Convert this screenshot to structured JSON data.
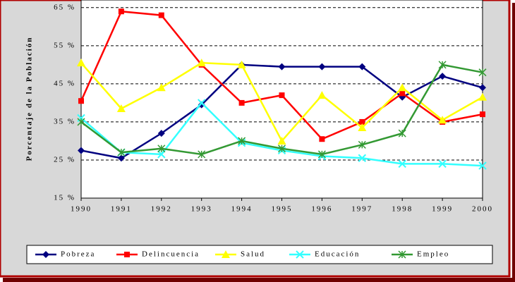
{
  "chart_data": {
    "type": "line",
    "y_label": "Porcentaje de la Población",
    "categories": [
      "1990",
      "1991",
      "1992",
      "1993",
      "1994",
      "1995",
      "1996",
      "1997",
      "1998",
      "1999",
      "2000"
    ],
    "ylim": [
      15,
      67
    ],
    "yticks": [
      {
        "value": 15,
        "label": "15 %"
      },
      {
        "value": 25,
        "label": "25 %"
      },
      {
        "value": 35,
        "label": "35 %"
      },
      {
        "value": 45,
        "label": "45 %"
      },
      {
        "value": 55,
        "label": "55 %"
      },
      {
        "value": 65,
        "label": "65 %"
      }
    ],
    "grid": true,
    "series": [
      {
        "name": "Pobreza",
        "color": "#000080",
        "marker": "diamond",
        "values": [
          27.5,
          25.5,
          32,
          39.5,
          50,
          49.5,
          49.5,
          49.5,
          41.5,
          47,
          44
        ]
      },
      {
        "name": "Delincuencia",
        "color": "#ff0000",
        "marker": "square",
        "values": [
          40.5,
          64,
          63,
          50,
          40,
          42,
          30.5,
          35,
          42.5,
          35,
          37
        ]
      },
      {
        "name": "Salud",
        "color": "#ffff00",
        "marker": "triangle",
        "values": [
          50.5,
          38.5,
          44,
          50.5,
          50,
          30,
          42,
          33.5,
          44,
          35.5,
          41.5
        ]
      },
      {
        "name": "Educación",
        "color": "#33ffff",
        "marker": "x",
        "values": [
          36,
          27,
          26.5,
          40,
          29.5,
          27.5,
          26,
          25.5,
          24,
          24,
          23.5
        ]
      },
      {
        "name": "Empleo",
        "color": "#339933",
        "marker": "star",
        "values": [
          35,
          27,
          28,
          26.5,
          30,
          28,
          26.5,
          29,
          32,
          50,
          48
        ]
      }
    ]
  }
}
